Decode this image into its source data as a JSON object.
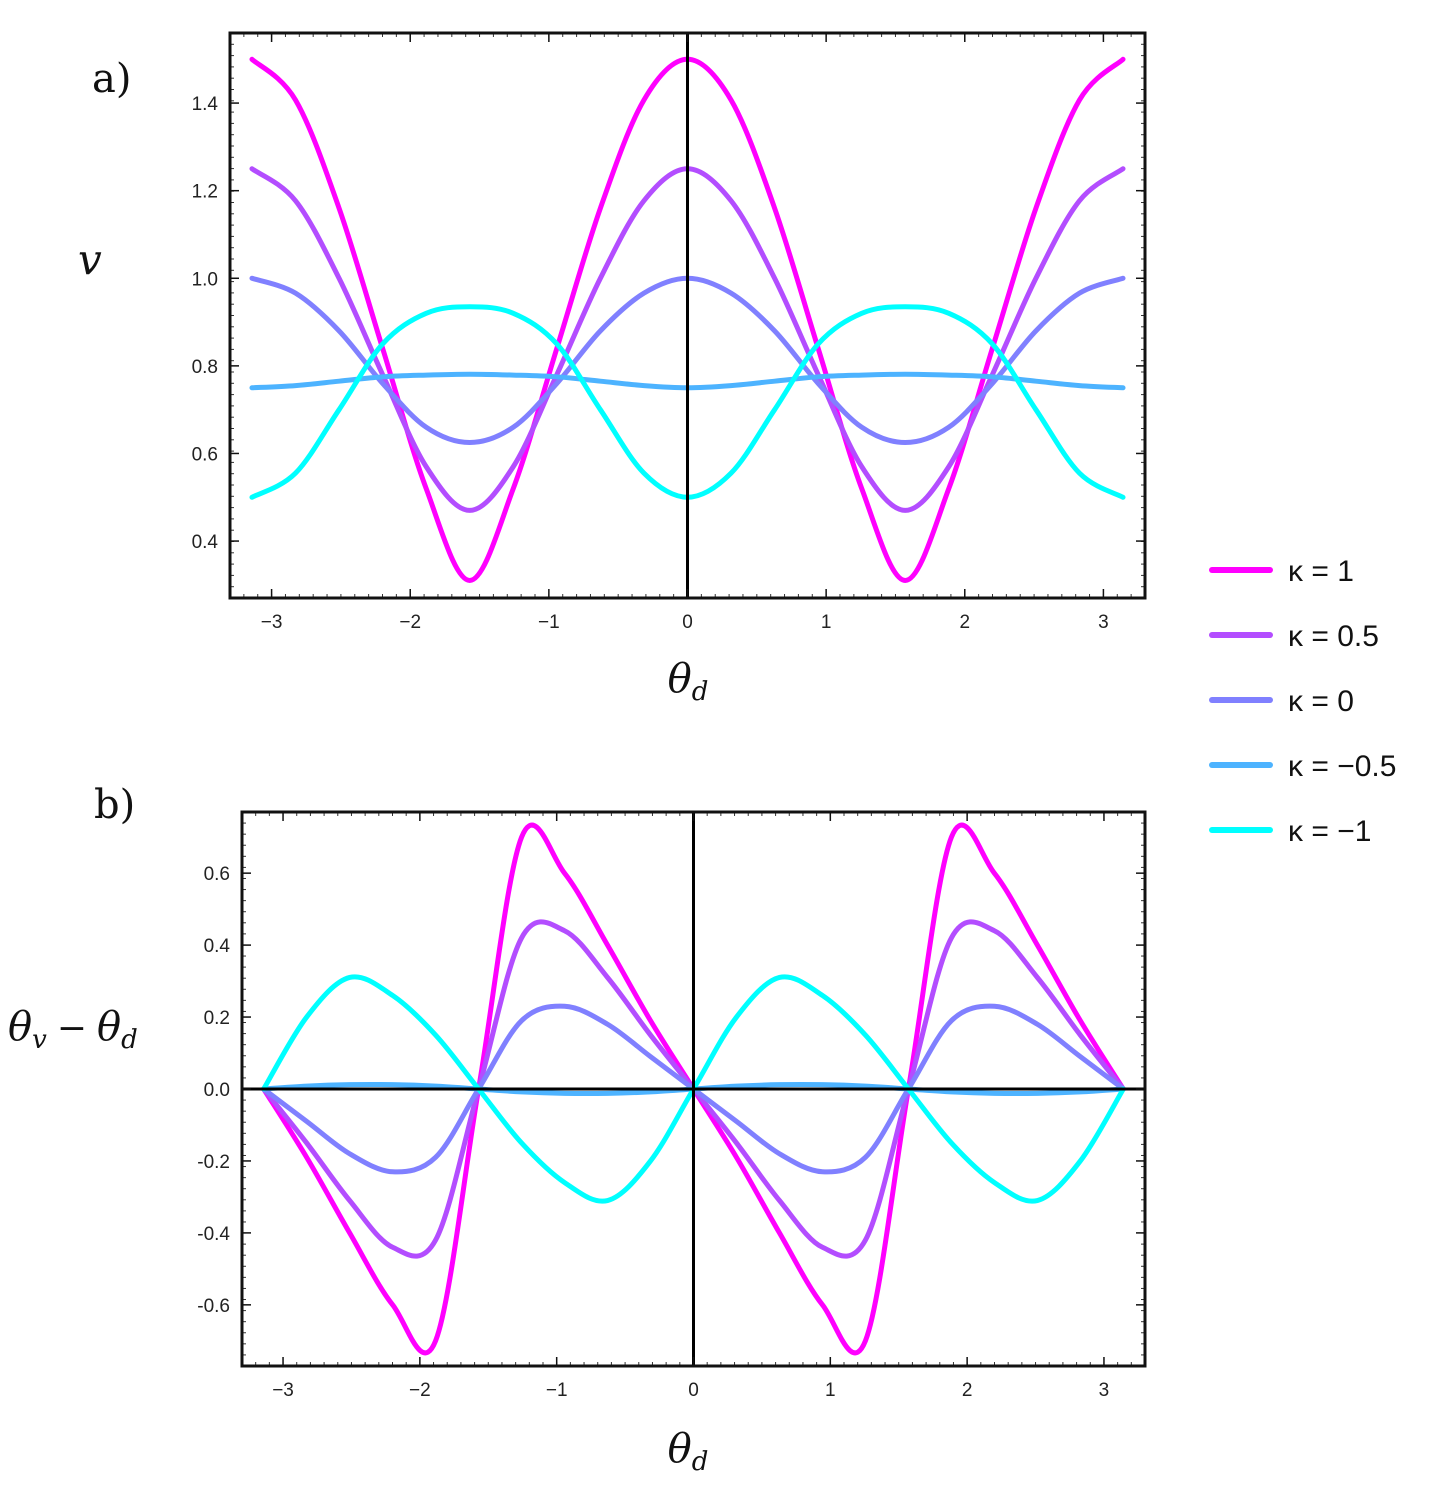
{
  "chart_data": [
    {
      "type": "line",
      "panel_label": "a)",
      "xlabel_base": "θ",
      "xlabel_sub": "d",
      "ylabel": "v",
      "xlim": [
        -3.3,
        3.3
      ],
      "ylim": [
        0.27,
        1.56
      ],
      "xticks": [
        -3,
        -2,
        -1,
        0,
        1,
        2,
        3
      ],
      "xtick_labels": [
        "−3",
        "−2",
        "−1",
        "0",
        "1",
        "2",
        "3"
      ],
      "yticks": [
        0.4,
        0.6,
        0.8,
        1.0,
        1.2,
        1.4
      ],
      "ytick_labels": [
        "0.4",
        "0.6",
        "0.8",
        "1.0",
        "1.2",
        "1.4"
      ],
      "x": [
        -3.1416,
        -2.8274,
        -2.5133,
        -2.1991,
        -1.885,
        -1.5708,
        -1.2566,
        -0.9425,
        -0.6283,
        -0.3142,
        0,
        0.3142,
        0.6283,
        0.9425,
        1.2566,
        1.5708,
        1.885,
        2.1991,
        2.5133,
        2.8274,
        3.1416
      ],
      "series": [
        {
          "name": "κ = 1",
          "color": "#ff00ff",
          "values": [
            1.5,
            1.407,
            1.16,
            0.84,
            0.52,
            0.31,
            0.52,
            0.84,
            1.16,
            1.407,
            1.5,
            1.407,
            1.16,
            0.84,
            0.52,
            0.31,
            0.52,
            0.84,
            1.16,
            1.407,
            1.5
          ]
        },
        {
          "name": "κ = 0.5",
          "color": "#b34dff",
          "values": [
            1.25,
            1.177,
            1.0,
            0.78,
            0.57,
            0.47,
            0.57,
            0.78,
            1.0,
            1.177,
            1.25,
            1.177,
            1.0,
            0.78,
            0.57,
            0.47,
            0.57,
            0.78,
            1.0,
            1.177,
            1.25
          ]
        },
        {
          "name": "κ = 0",
          "color": "#8080ff",
          "values": [
            1.0,
            0.966,
            0.88,
            0.76,
            0.66,
            0.625,
            0.66,
            0.76,
            0.88,
            0.966,
            1.0,
            0.966,
            0.88,
            0.76,
            0.66,
            0.625,
            0.66,
            0.76,
            0.88,
            0.966,
            1.0
          ]
        },
        {
          "name": "κ = −0.5",
          "color": "#4db3ff",
          "values": [
            0.75,
            0.755,
            0.765,
            0.775,
            0.779,
            0.781,
            0.779,
            0.775,
            0.765,
            0.755,
            0.75,
            0.755,
            0.765,
            0.775,
            0.779,
            0.781,
            0.779,
            0.775,
            0.765,
            0.755,
            0.75
          ]
        },
        {
          "name": "κ = −1",
          "color": "#00ffff",
          "values": [
            0.5,
            0.555,
            0.7,
            0.85,
            0.92,
            0.935,
            0.92,
            0.85,
            0.7,
            0.555,
            0.5,
            0.555,
            0.7,
            0.85,
            0.92,
            0.935,
            0.92,
            0.85,
            0.7,
            0.555,
            0.5
          ]
        }
      ]
    },
    {
      "type": "line",
      "panel_label": "b)",
      "xlabel_base": "θ",
      "xlabel_sub": "d",
      "ylabel_base1": "θ",
      "ylabel_sub1": "v",
      "ylabel_minus": "−",
      "ylabel_base2": "θ",
      "ylabel_sub2": "d",
      "xlim": [
        -3.3,
        3.3
      ],
      "ylim": [
        -0.77,
        0.77
      ],
      "xticks": [
        -3,
        -2,
        -1,
        0,
        1,
        2,
        3
      ],
      "xtick_labels": [
        "−3",
        "−2",
        "−1",
        "0",
        "1",
        "2",
        "3"
      ],
      "yticks": [
        -0.6,
        -0.4,
        -0.2,
        0.0,
        0.2,
        0.4,
        0.6
      ],
      "ytick_labels": [
        "-0.6",
        "-0.4",
        "-0.2",
        "0.0",
        "0.2",
        "0.4",
        "0.6"
      ],
      "x": [
        -3.1416,
        -2.8274,
        -2.5133,
        -2.1991,
        -1.885,
        -1.5708,
        -1.2566,
        -0.9425,
        -0.6283,
        -0.3142,
        0,
        0.3142,
        0.6283,
        0.9425,
        1.2566,
        1.5708,
        1.885,
        2.1991,
        2.5133,
        2.8274,
        3.1416
      ],
      "series": [
        {
          "name": "κ = 1",
          "color": "#ff00ff",
          "values": [
            0,
            -0.19,
            -0.4,
            -0.6,
            -0.7,
            0,
            0.7,
            0.6,
            0.4,
            0.19,
            0,
            -0.19,
            -0.4,
            -0.6,
            -0.7,
            0,
            0.7,
            0.6,
            0.4,
            0.19,
            0
          ]
        },
        {
          "name": "κ = 0.5",
          "color": "#b34dff",
          "values": [
            0,
            -0.15,
            -0.31,
            -0.44,
            -0.42,
            0,
            0.42,
            0.44,
            0.31,
            0.15,
            0,
            -0.15,
            -0.31,
            -0.44,
            -0.42,
            0,
            0.42,
            0.44,
            0.31,
            0.15,
            0
          ]
        },
        {
          "name": "κ = 0",
          "color": "#8080ff",
          "values": [
            0,
            -0.09,
            -0.18,
            -0.23,
            -0.19,
            0,
            0.19,
            0.23,
            0.18,
            0.09,
            0,
            -0.09,
            -0.18,
            -0.23,
            -0.19,
            0,
            0.19,
            0.23,
            0.18,
            0.09,
            0
          ]
        },
        {
          "name": "κ = −0.5",
          "color": "#4db3ff",
          "values": [
            0,
            0.008,
            0.012,
            0.012,
            0.008,
            0,
            -0.008,
            -0.012,
            -0.012,
            -0.008,
            0,
            0.008,
            0.012,
            0.012,
            0.008,
            0,
            -0.008,
            -0.012,
            -0.012,
            -0.008,
            0
          ]
        },
        {
          "name": "κ = −1",
          "color": "#00ffff",
          "values": [
            0,
            0.2,
            0.31,
            0.26,
            0.15,
            0,
            -0.15,
            -0.26,
            -0.31,
            -0.2,
            0,
            0.2,
            0.31,
            0.26,
            0.15,
            0,
            -0.15,
            -0.26,
            -0.31,
            -0.2,
            0
          ]
        }
      ]
    }
  ],
  "legend": {
    "position": "right",
    "entries": [
      {
        "label": "κ = 1",
        "color": "#ff00ff"
      },
      {
        "label": "κ = 0.5",
        "color": "#b34dff"
      },
      {
        "label": "κ = 0",
        "color": "#8080ff"
      },
      {
        "label": "κ = −0.5",
        "color": "#4db3ff"
      },
      {
        "label": "κ = −1",
        "color": "#00ffff"
      }
    ]
  }
}
